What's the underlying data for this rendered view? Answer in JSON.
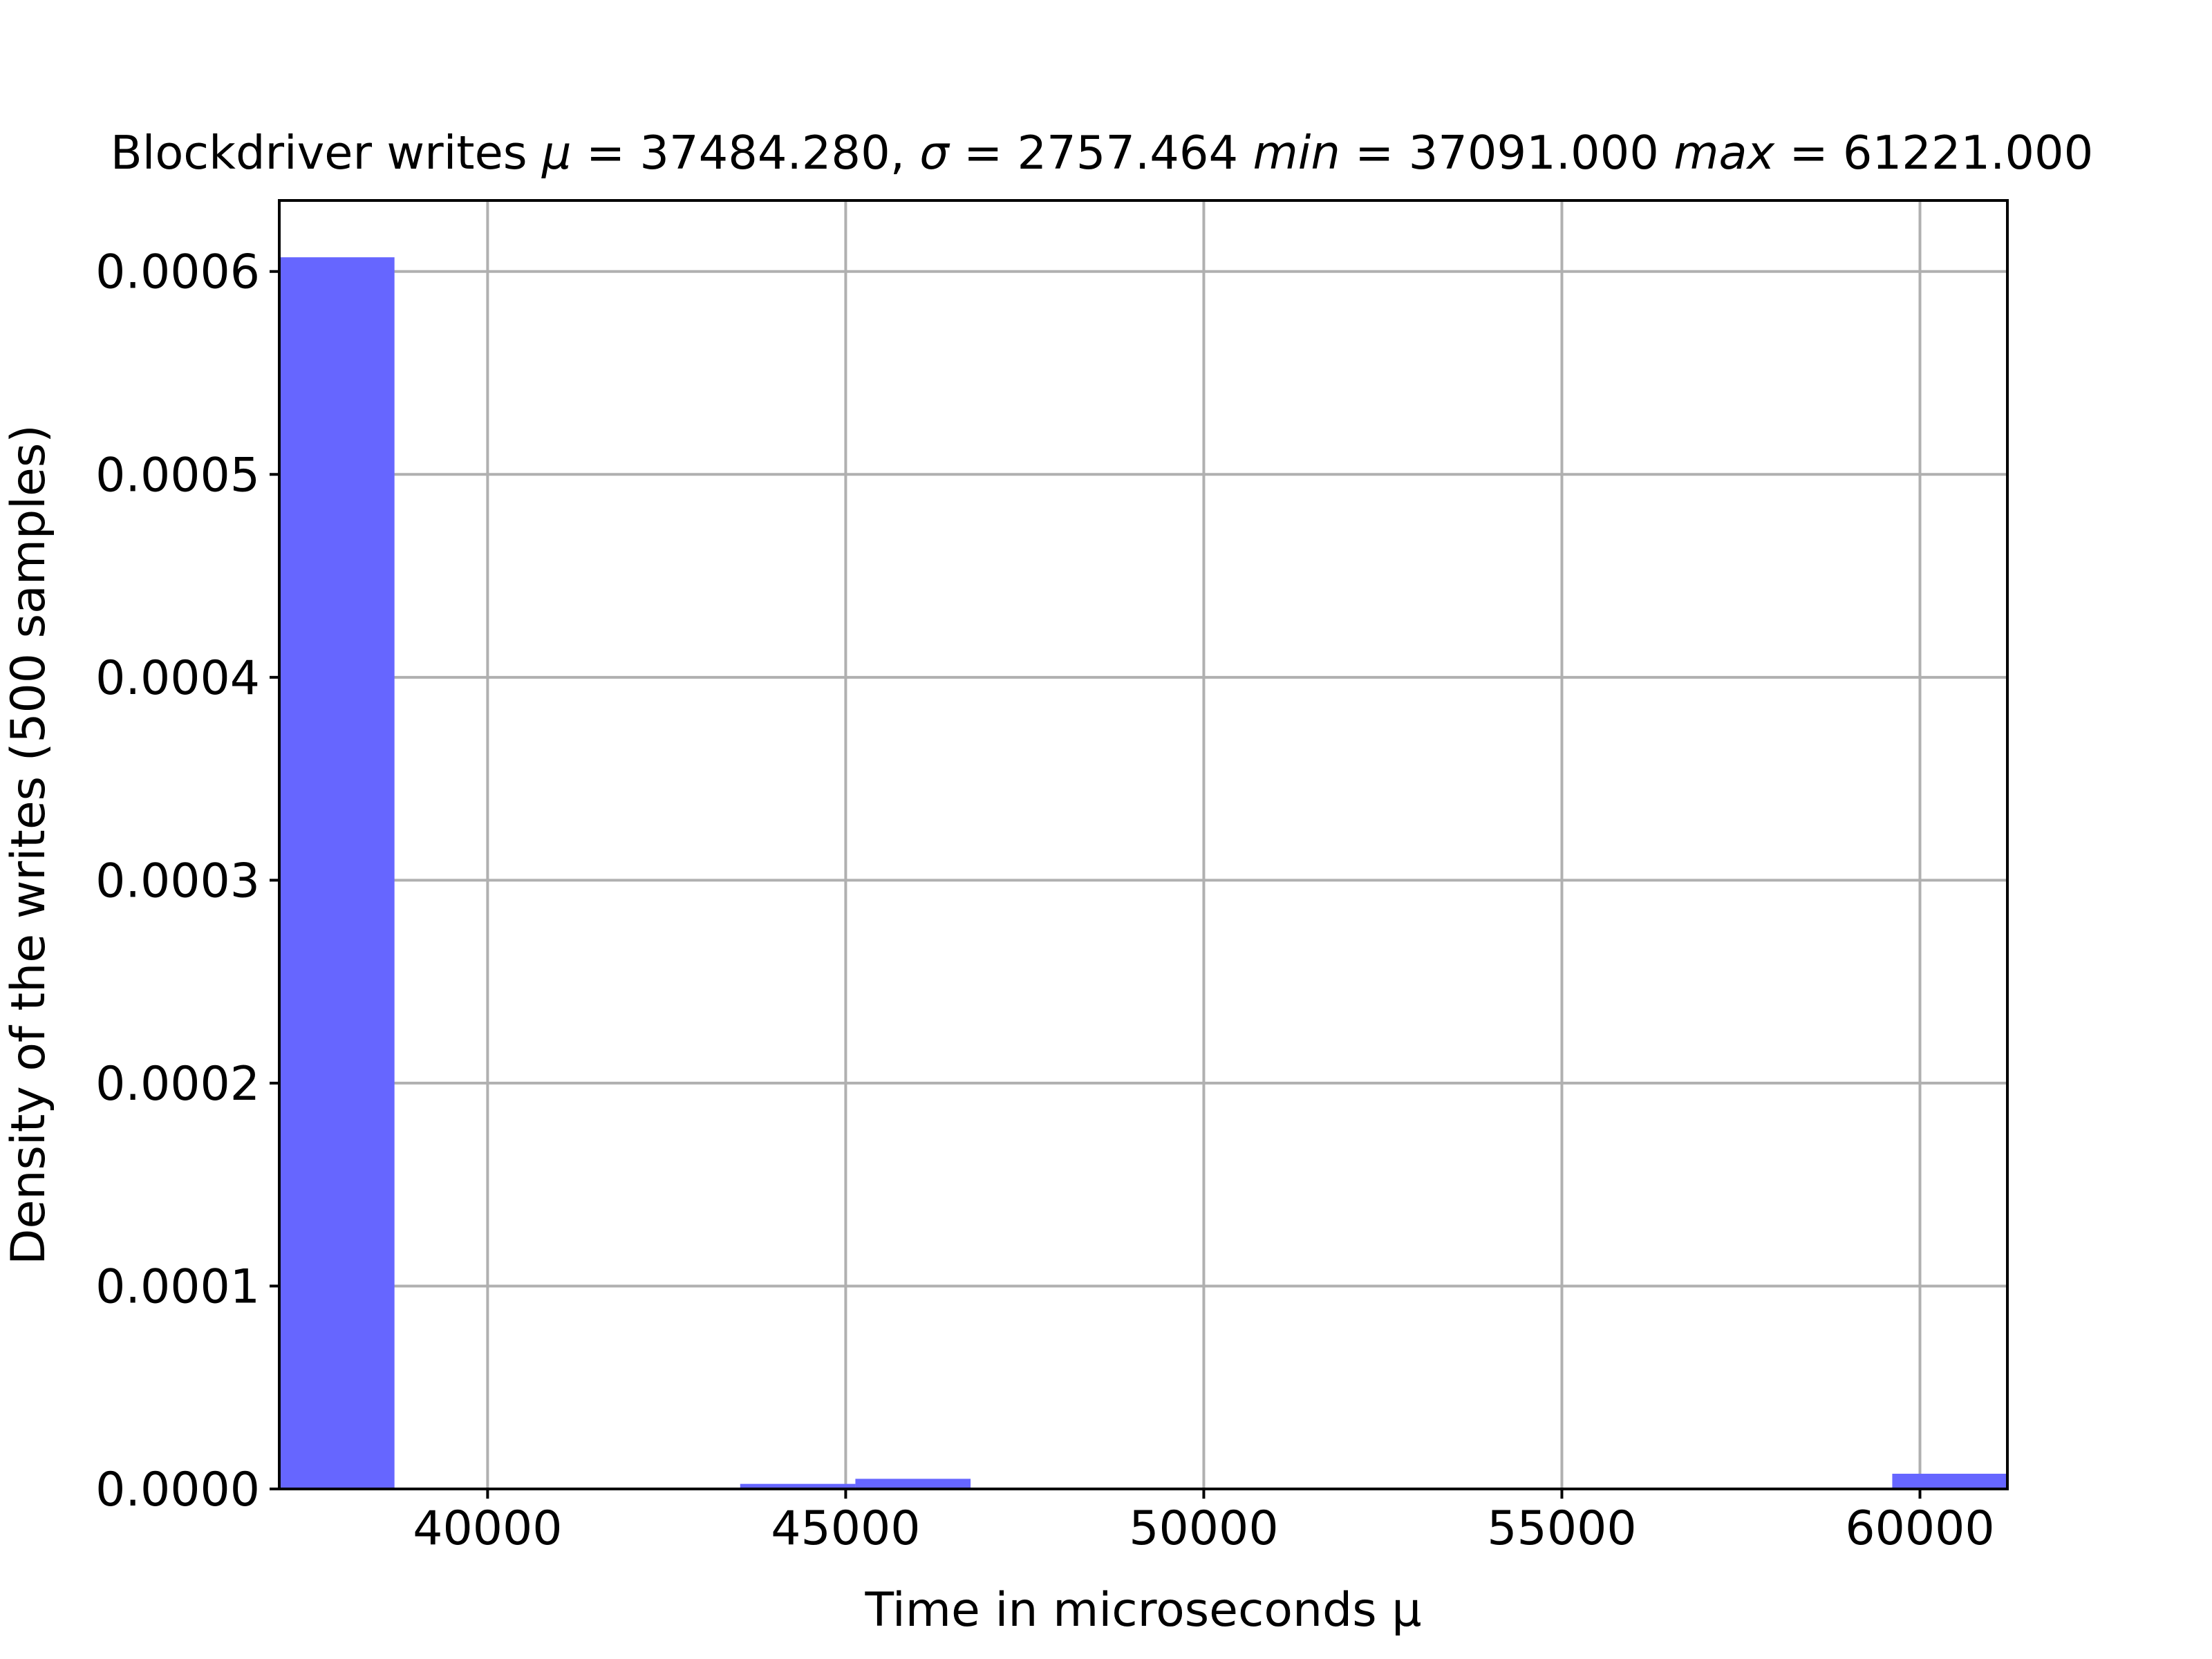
{
  "chart_data": {
    "type": "bar",
    "title": {
      "t1": "Blockdriver writes ",
      "m1": "μ",
      "t2": " = 37484.280,  ",
      "m2": "σ",
      "t3": " = 2757.464 ",
      "m3": "min",
      "t4": " = 37091.000 ",
      "m4": "max",
      "t5": " = 61221.000"
    },
    "xlabel": "Time in microseconds μ",
    "ylabel": "Density of the writes (500 samples)",
    "xlim": [
      37091,
      61221
    ],
    "ylim": [
      0,
      0.000635
    ],
    "x_ticks": [
      40000,
      45000,
      50000,
      55000,
      60000
    ],
    "y_ticks": [
      0.0,
      0.0001,
      0.0002,
      0.0003,
      0.0004,
      0.0005,
      0.0006
    ],
    "x_tick_labels": [
      "40000",
      "45000",
      "50000",
      "55000",
      "60000"
    ],
    "y_tick_labels": [
      "0.0000",
      "0.0001",
      "0.0002",
      "0.0003",
      "0.0004",
      "0.0005",
      "0.0006"
    ],
    "grid": true,
    "bar_color": "#6666ff",
    "bins": [
      {
        "x0": 37091.0,
        "x1": 38699.7,
        "density": 0.000607
      },
      {
        "x0": 43526.7,
        "x1": 45135.3,
        "density": 2.5e-06
      },
      {
        "x0": 45135.3,
        "x1": 46744.0,
        "density": 5e-06
      },
      {
        "x0": 59613.3,
        "x1": 61221.0,
        "density": 7.5e-06
      }
    ]
  }
}
